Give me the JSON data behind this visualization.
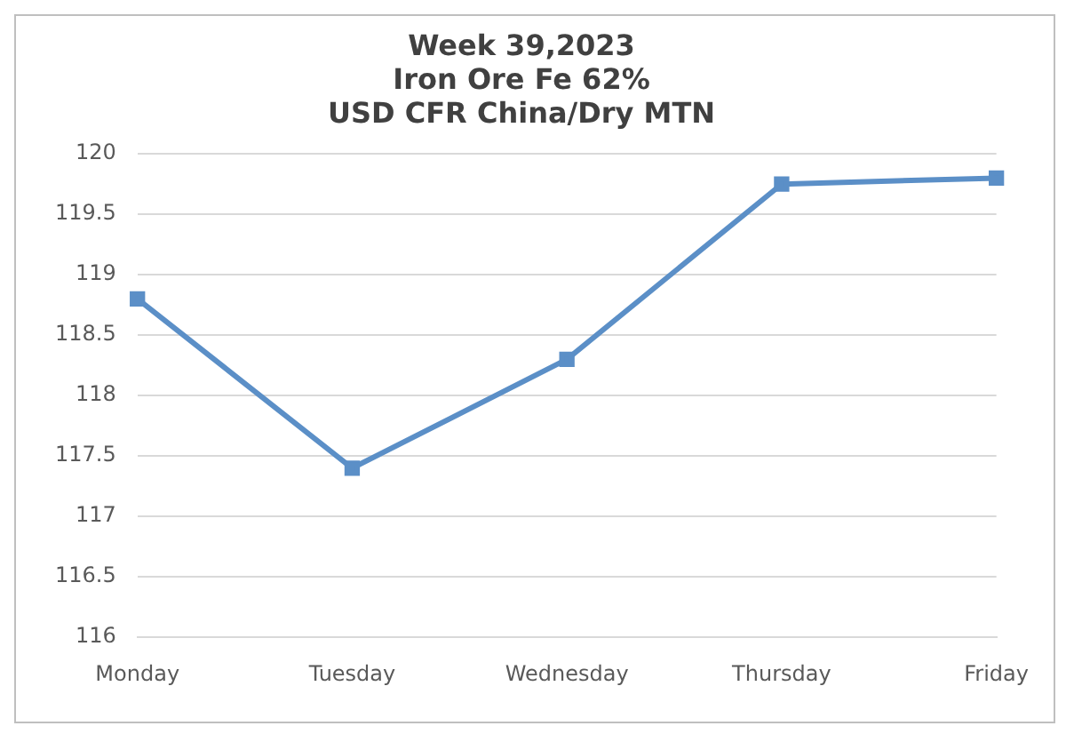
{
  "chart_data": {
    "type": "line",
    "title": [
      "Week 39,2023",
      "Iron Ore Fe 62%",
      "USD CFR China/Dry MTN"
    ],
    "categories": [
      "Monday",
      "Tuesday",
      "Wednesday",
      "Thursday",
      "Friday"
    ],
    "series": [
      {
        "color": "#5b8fc7",
        "values": [
          118.8,
          117.4,
          118.3,
          119.75,
          119.8
        ]
      }
    ],
    "ylim": [
      116,
      120
    ],
    "yticks": [
      116,
      116.5,
      117,
      117.5,
      118,
      118.5,
      119,
      119.5,
      120
    ],
    "grid": "y",
    "legend": false,
    "marker": "square",
    "line_style": "solid"
  }
}
